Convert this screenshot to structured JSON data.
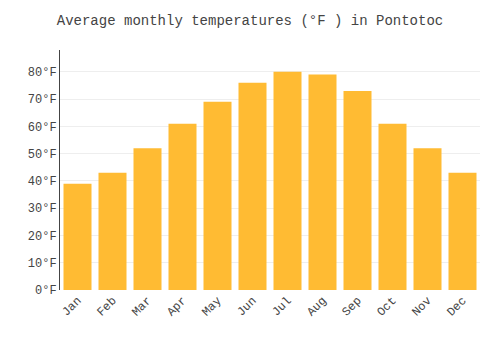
{
  "chart_data": {
    "type": "bar",
    "title": "Average monthly temperatures (°F ) in Pontotoc",
    "categories": [
      "Jan",
      "Feb",
      "Mar",
      "Apr",
      "May",
      "Jun",
      "Jul",
      "Aug",
      "Sep",
      "Oct",
      "Nov",
      "Dec"
    ],
    "values": [
      39,
      43,
      52,
      61,
      69,
      76,
      80,
      79,
      73,
      61,
      52,
      43
    ],
    "color": "#FFBB33",
    "ylim": [
      0,
      88
    ],
    "yticks": [
      {
        "value": 0,
        "label": "0°F"
      },
      {
        "value": 10,
        "label": "10°F"
      },
      {
        "value": 20,
        "label": "20°F"
      },
      {
        "value": 30,
        "label": "30°F"
      },
      {
        "value": 40,
        "label": "40°F"
      },
      {
        "value": 50,
        "label": "50°F"
      },
      {
        "value": 60,
        "label": "60°F"
      },
      {
        "value": 70,
        "label": "70°F"
      },
      {
        "value": 80,
        "label": "80°F"
      }
    ],
    "grid": true
  }
}
